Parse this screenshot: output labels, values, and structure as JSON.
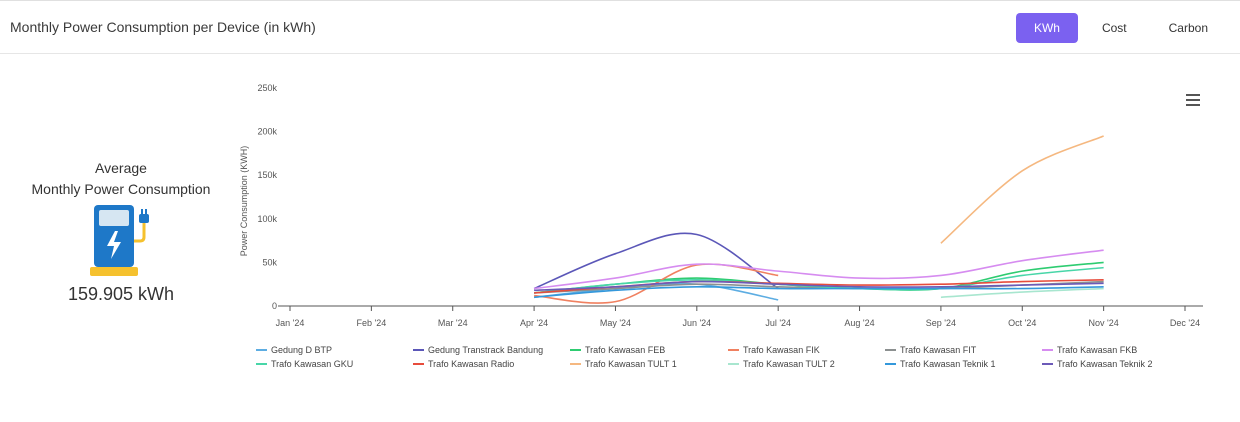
{
  "header": {
    "title": "Monthly Power Consumption per Device (in kWh)",
    "tabs": [
      {
        "label": "KWh",
        "active": true
      },
      {
        "label": "Cost",
        "active": false
      },
      {
        "label": "Carbon",
        "active": false
      }
    ]
  },
  "summary": {
    "title_line1": "Average",
    "title_line2": "Monthly Power Consumption",
    "value": "159.905 kWh",
    "icon": "ev-charger-icon"
  },
  "chart_data": {
    "type": "line",
    "title": "",
    "xlabel": "",
    "ylabel": "Power Consumption (KWH)",
    "x": [
      "Jan '24",
      "Feb '24",
      "Mar '24",
      "Apr '24",
      "May '24",
      "Jun '24",
      "Jul '24",
      "Aug '24",
      "Sep '24",
      "Oct '24",
      "Nov '24",
      "Dec '24"
    ],
    "yticks": [
      0,
      50000,
      100000,
      150000,
      200000,
      250000
    ],
    "ytick_labels": [
      "0",
      "50k",
      "100k",
      "150k",
      "200k",
      "250k"
    ],
    "ylim": [
      0,
      250000
    ],
    "grid": false,
    "legend_position": "bottom",
    "series": [
      {
        "name": "Gedung D BTP",
        "color": "#5dade2",
        "values": [
          null,
          null,
          null,
          10000,
          20000,
          25000,
          7000,
          null,
          null,
          null,
          null,
          null
        ]
      },
      {
        "name": "Gedung Transtrack Bandung",
        "color": "#5b57b8",
        "values": [
          null,
          null,
          null,
          20000,
          60000,
          82000,
          20000,
          null,
          null,
          null,
          null,
          null
        ]
      },
      {
        "name": "Trafo Kawasan FEB",
        "color": "#2ecc71",
        "values": [
          null,
          null,
          null,
          15000,
          25000,
          32000,
          25000,
          20000,
          20000,
          40000,
          50000,
          null
        ]
      },
      {
        "name": "Trafo Kawasan FIK",
        "color": "#f08060",
        "values": [
          null,
          null,
          null,
          12000,
          5000,
          47000,
          35000,
          null,
          null,
          null,
          null,
          null
        ]
      },
      {
        "name": "Trafo Kawasan FIT",
        "color": "#8c9090",
        "values": [
          null,
          null,
          null,
          15000,
          20000,
          25000,
          22000,
          20000,
          20000,
          24000,
          28000,
          null
        ]
      },
      {
        "name": "Trafo Kawasan FKB",
        "color": "#d68cf0",
        "values": [
          null,
          null,
          null,
          20000,
          32000,
          48000,
          40000,
          32000,
          35000,
          52000,
          64000,
          null
        ]
      },
      {
        "name": "Trafo Kawasan GKU",
        "color": "#48d6a8",
        "values": [
          null,
          null,
          null,
          15000,
          25000,
          30000,
          25000,
          20000,
          20000,
          35000,
          44000,
          null
        ]
      },
      {
        "name": "Trafo Kawasan Radio",
        "color": "#e74c3c",
        "values": [
          null,
          null,
          null,
          15000,
          22000,
          28000,
          26000,
          24000,
          25000,
          28000,
          30000,
          null
        ]
      },
      {
        "name": "Trafo Kawasan TULT 1",
        "color": "#f5b880",
        "values": [
          null,
          null,
          null,
          null,
          null,
          null,
          null,
          null,
          72000,
          155000,
          195000,
          null
        ]
      },
      {
        "name": "Trafo Kawasan TULT 2",
        "color": "#a8e6cf",
        "values": [
          null,
          null,
          null,
          null,
          null,
          null,
          null,
          null,
          10000,
          16000,
          20000,
          null
        ]
      },
      {
        "name": "Trafo Kawasan Teknik 1",
        "color": "#3498db",
        "values": [
          null,
          null,
          null,
          10000,
          18000,
          22000,
          20000,
          20000,
          20000,
          20000,
          22000,
          null
        ]
      },
      {
        "name": "Trafo Kawasan Teknik 2",
        "color": "#6c5ab8",
        "values": [
          null,
          null,
          null,
          18000,
          22000,
          28000,
          25000,
          22000,
          22000,
          24000,
          26000,
          null
        ]
      }
    ]
  }
}
